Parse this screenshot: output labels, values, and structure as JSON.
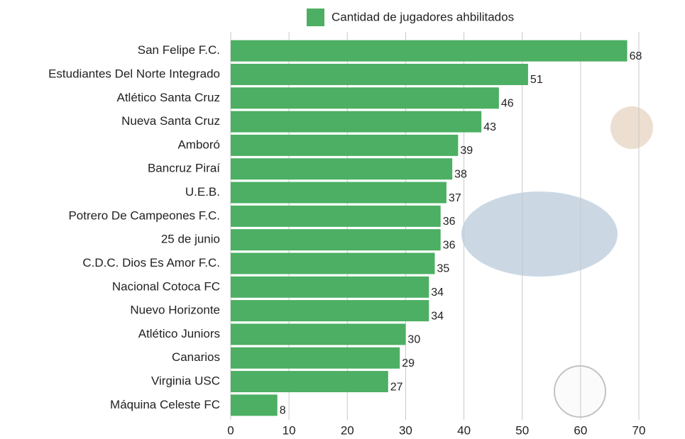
{
  "chart_data": {
    "type": "bar",
    "categories": [
      "San Felipe F.C.",
      "Estudiantes Del Norte Integrado",
      "Atlético Santa Cruz",
      "Nueva Santa Cruz",
      "Amboró",
      "Bancruz Piraí",
      "U.E.B.",
      "Potrero De Campeones F.C.",
      "25 de junio",
      "C.D.C. Dios Es Amor F.C.",
      "Nacional Cotoca FC",
      "Nuevo Horizonte",
      "Atlético Juniors",
      "Canarios",
      "Virginia USC",
      "Máquina Celeste FC"
    ],
    "series": [
      {
        "name": "Cantidad de jugadores ahbilitados",
        "color": "#4caf63",
        "values": [
          68,
          51,
          46,
          43,
          39,
          38,
          37,
          36,
          36,
          35,
          34,
          34,
          30,
          29,
          27,
          8
        ]
      }
    ],
    "xlim": [
      0,
      70
    ],
    "xticks": [
      0,
      10,
      20,
      30,
      40,
      50,
      60,
      70
    ],
    "grid": true
  }
}
